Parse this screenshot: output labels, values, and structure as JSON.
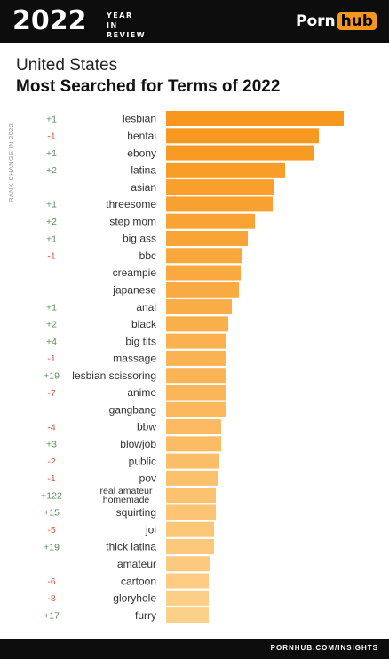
{
  "header": {
    "year": "2022",
    "year_in_review": "YEAR IN REVIEW",
    "logo_text": "Porn",
    "logo_badge": "hub"
  },
  "title": {
    "line1": "United States",
    "line2": "Most Searched for Terms of 2022"
  },
  "footer": {
    "url": "PORNHUB.COM/INSIGHTS"
  },
  "colors": {
    "change_positive": "#5a8f57",
    "change_negative": "#d9533b",
    "bar_dark": "#f7971d",
    "bar_light": "#fdd08a"
  },
  "chart_data": {
    "type": "bar",
    "orientation": "horizontal",
    "ylabel": "RANK CHANGE IN 2022",
    "categories": [
      "lesbian",
      "hentai",
      "ebony",
      "latina",
      "asian",
      "threesome",
      "step mom",
      "big ass",
      "bbc",
      "creampie",
      "japanese",
      "anal",
      "black",
      "big tits",
      "massage",
      "lesbian scissoring",
      "anime",
      "gangbang",
      "bbw",
      "blowjob",
      "public",
      "pov",
      "real amateur homemade",
      "squirting",
      "joi",
      "thick latina",
      "amateur",
      "cartoon",
      "gloryhole",
      "furry"
    ],
    "rank_change": [
      "+1",
      "-1",
      "+1",
      "+2",
      "",
      "+1",
      "+2",
      "+1",
      "-1",
      "",
      "",
      "+1",
      "+2",
      "+4",
      "-1",
      "+19",
      "-7",
      "",
      "-4",
      "+3",
      "-2",
      "-1",
      "+122",
      "+15",
      "-5",
      "+19",
      "",
      "-6",
      "-8",
      "+17"
    ],
    "values": [
      100,
      86,
      83,
      67,
      61,
      60,
      50,
      46,
      43,
      42,
      41,
      37,
      35,
      34,
      34,
      34,
      34,
      34,
      31,
      31,
      30,
      29,
      28,
      28,
      27,
      27,
      25,
      24,
      24,
      24
    ]
  }
}
